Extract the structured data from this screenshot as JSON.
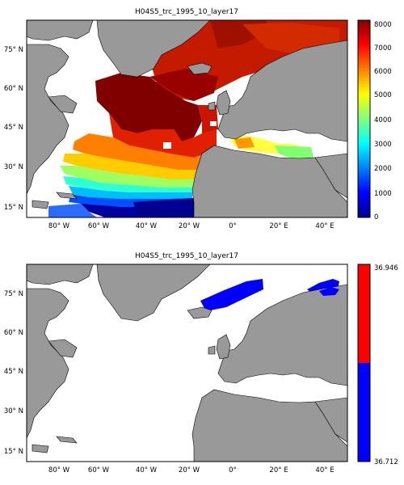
{
  "figure": {
    "panels": [
      {
        "title": "H04S5_trc_1995_10_layer17",
        "lat_ticks": [
          "75° N",
          "60° N",
          "45° N",
          "30° N",
          "15° N"
        ],
        "lon_ticks": [
          "80° W",
          "60° W",
          "40° W",
          "20° W",
          "0°",
          "20° E",
          "40° E"
        ],
        "colorbar": {
          "ticks": [
            "8000",
            "7000",
            "6000",
            "5000",
            "4000",
            "3000",
            "2000",
            "1000",
            "0"
          ],
          "colormap": "jet",
          "range": [
            0,
            8000
          ]
        }
      },
      {
        "title": "H04S5_trc_1995_10_layer17",
        "lat_ticks": [
          "75° N",
          "60° N",
          "45° N",
          "30° N",
          "15° N"
        ],
        "lon_ticks": [
          "80° W",
          "60° W",
          "40° W",
          "20° W",
          "0°",
          "20° E",
          "40° E"
        ],
        "colorbar": {
          "ticks": [
            "36.946",
            "36.712"
          ],
          "range": [
            36.712,
            36.946
          ],
          "colors": [
            "#0000ff",
            "#ff0000"
          ]
        }
      }
    ],
    "colors": {
      "land": "#999999",
      "land_outline": "#000000",
      "no_data": "#ffffff"
    }
  }
}
